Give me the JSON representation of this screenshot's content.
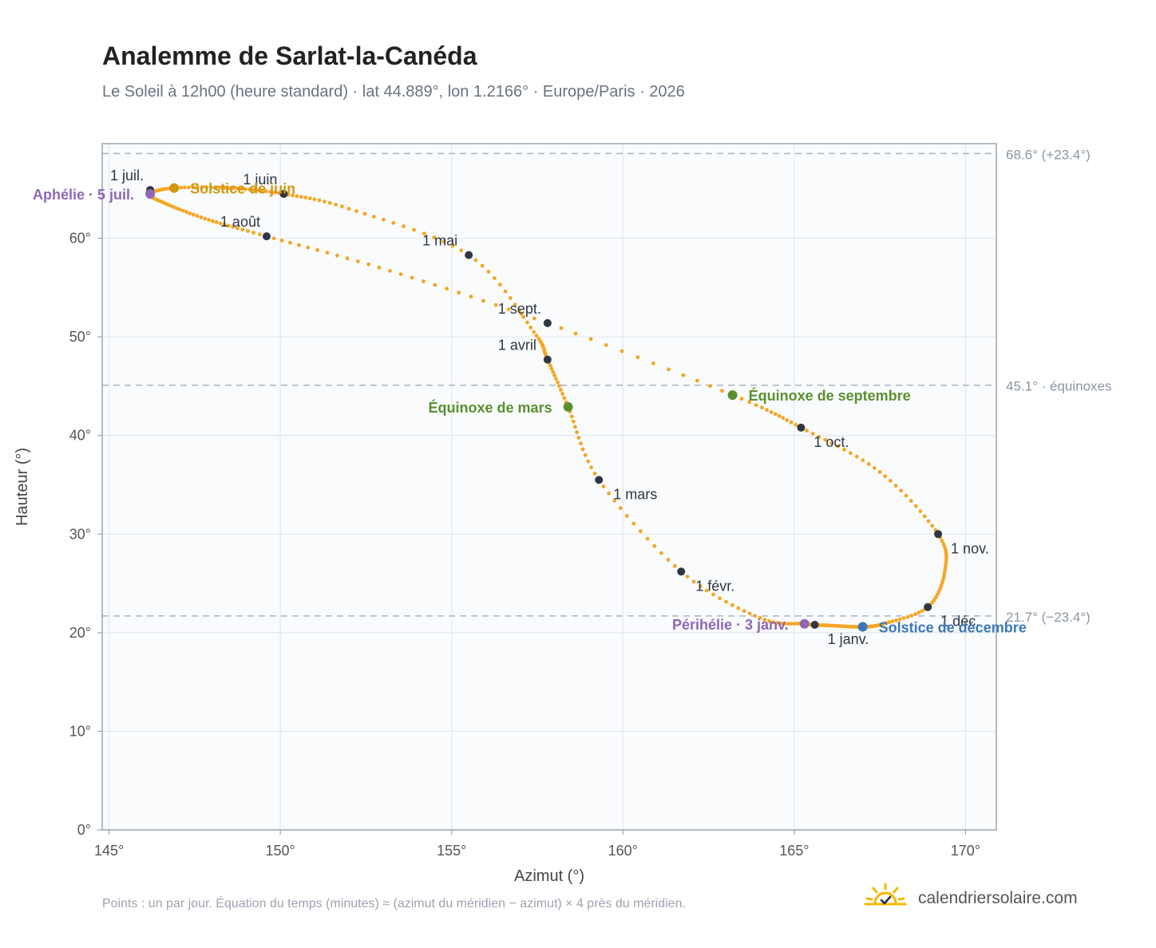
{
  "header": {
    "title": "Analemme de Sarlat-la-Canéda",
    "subtitle": "Le Soleil à 12h00 (heure standard) · lat 44.889°, lon 1.2166° · Europe/Paris · 2026"
  },
  "chart_data": {
    "type": "scatter",
    "xlabel": "Azimut (°)",
    "ylabel": "Hauteur (°)",
    "xlim": [
      144.8,
      170.9
    ],
    "ylim": [
      0,
      69.6
    ],
    "xticks": [
      145,
      150,
      155,
      160,
      165,
      170
    ],
    "xtick_labels": [
      "145°",
      "150°",
      "155°",
      "160°",
      "165°",
      "170°"
    ],
    "yticks": [
      0,
      10,
      20,
      30,
      40,
      50,
      60
    ],
    "ytick_labels": [
      "0°",
      "10°",
      "20°",
      "30°",
      "40°",
      "50°",
      "60°"
    ],
    "grid": true,
    "series_color": "#f5a623",
    "path_anchors": [
      [
        165.6,
        20.8
      ],
      [
        165.3,
        20.9
      ],
      [
        164.0,
        21.5
      ],
      [
        161.7,
        26.2
      ],
      [
        159.3,
        35.5
      ],
      [
        158.4,
        42.9
      ],
      [
        157.8,
        47.7
      ],
      [
        157.4,
        50.5
      ],
      [
        155.5,
        58.3
      ],
      [
        152.0,
        63.0
      ],
      [
        150.1,
        64.5
      ],
      [
        148.5,
        65.1
      ],
      [
        146.9,
        65.1
      ],
      [
        146.2,
        64.5
      ],
      [
        146.6,
        63.6
      ],
      [
        147.8,
        62.0
      ],
      [
        149.6,
        60.2
      ],
      [
        153.2,
        56.7
      ],
      [
        157.8,
        51.4
      ],
      [
        163.2,
        44.1
      ],
      [
        165.2,
        40.8
      ],
      [
        167.5,
        36.3
      ],
      [
        169.2,
        30.0
      ],
      [
        169.4,
        26.3
      ],
      [
        168.9,
        22.6
      ],
      [
        167.6,
        20.9
      ],
      [
        167.0,
        20.6
      ],
      [
        166.2,
        20.7
      ],
      [
        165.6,
        20.8
      ]
    ],
    "month_markers": [
      {
        "label": "1 janv.",
        "x": 165.6,
        "y": 20.8,
        "pos": "below-right"
      },
      {
        "label": "1 févr.",
        "x": 161.7,
        "y": 26.2,
        "pos": "right"
      },
      {
        "label": "1 mars",
        "x": 159.3,
        "y": 35.5,
        "pos": "right"
      },
      {
        "label": "1 avril",
        "x": 157.8,
        "y": 47.7,
        "pos": "left"
      },
      {
        "label": "1 mai",
        "x": 155.5,
        "y": 58.3,
        "pos": "left"
      },
      {
        "label": "1 juin",
        "x": 150.1,
        "y": 64.5,
        "pos": "above-left"
      },
      {
        "label": "1 juil.",
        "x": 146.2,
        "y": 64.9,
        "pos": "above-left"
      },
      {
        "label": "1 août",
        "x": 149.6,
        "y": 60.2,
        "pos": "above-left"
      },
      {
        "label": "1 sept.",
        "x": 157.8,
        "y": 51.4,
        "pos": "above-left"
      },
      {
        "label": "1 oct.",
        "x": 165.2,
        "y": 40.8,
        "pos": "below-right"
      },
      {
        "label": "1 nov.",
        "x": 169.2,
        "y": 30.0,
        "pos": "below-right"
      },
      {
        "label": "1 déc.",
        "x": 168.9,
        "y": 22.6,
        "pos": "below-right"
      }
    ],
    "events": [
      {
        "label": "Solstice de juin",
        "x": 146.9,
        "y": 65.1,
        "color": "#d4960f",
        "pos": "right"
      },
      {
        "label": "Aphélie · 5 juil.",
        "x": 146.2,
        "y": 64.5,
        "color": "#8e67b6",
        "pos": "left"
      },
      {
        "label": "Équinoxe de mars",
        "x": 158.4,
        "y": 42.9,
        "color": "#5a8f2e",
        "pos": "left"
      },
      {
        "label": "Équinoxe de septembre",
        "x": 163.2,
        "y": 44.1,
        "color": "#5a8f2e",
        "pos": "right"
      },
      {
        "label": "Périhélie · 3 janv.",
        "x": 165.3,
        "y": 20.9,
        "color": "#8e67b6",
        "pos": "left"
      },
      {
        "label": "Solstice de décembre",
        "x": 167.0,
        "y": 20.6,
        "color": "#3b78b8",
        "pos": "right"
      }
    ],
    "reference_lines": [
      {
        "y": 68.6,
        "label": "68.6° (+23.4°)"
      },
      {
        "y": 45.1,
        "label": "45.1° · équinoxes"
      },
      {
        "y": 21.7,
        "label": "21.7° (−23.4°)"
      }
    ]
  },
  "footer": {
    "note": "Points : un par jour. Équation du temps (minutes) ≈ (azimut du méridien − azimut) × 4 près du méridien.",
    "brand": "calendriersolaire.com"
  },
  "icons": {
    "logo": "sun-check-icon"
  }
}
